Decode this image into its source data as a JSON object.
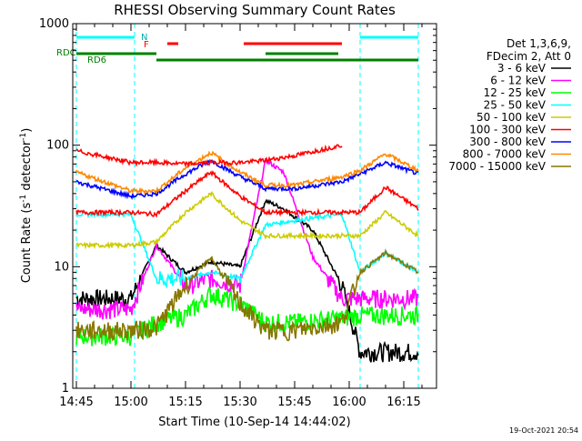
{
  "chart_data": {
    "type": "line",
    "title": "RHESSI Observing Summary Count Rates",
    "xlabel": "Start Time (10-Sep-14 14:44:02)",
    "ylabel_main": "Count Rate (s",
    "ylabel_sup1": "-1",
    "ylabel_mid": " detector",
    "ylabel_sup2": "-1",
    "ylabel_end": ")",
    "yscale": "log",
    "ylim": [
      1,
      1000
    ],
    "xlim": [
      "14:44",
      "16:24"
    ],
    "x_ticks": [
      "14:45",
      "15:00",
      "15:15",
      "15:30",
      "15:45",
      "16:00",
      "16:15"
    ],
    "x_tick_minutes": [
      45,
      60,
      75,
      90,
      105,
      120,
      135
    ],
    "y_ticks": [
      "1",
      "10",
      "100",
      "1000"
    ],
    "y_tick_values": [
      1,
      10,
      100,
      1000
    ],
    "x_start_minute": 44,
    "x_end_minute": 144,
    "timestamp": "19-Oct-2021 20:54",
    "legend": {
      "header1": "Det 1,3,6,9,",
      "header2": "FDecim 2, Att 0",
      "placement": "right"
    },
    "flags": {
      "N_label": "N",
      "F_label": "F",
      "RDC_label": "RDC",
      "RD6_label": "RD6",
      "N": [
        [
          "14:45",
          "15:01"
        ],
        [
          "16:03",
          "16:19"
        ]
      ],
      "F": [
        [
          "15:10",
          "15:13"
        ],
        [
          "15:31",
          "15:58"
        ]
      ],
      "RDC": [
        [
          "14:45",
          "15:07"
        ],
        [
          "15:37",
          "15:57"
        ]
      ],
      "RD6": [
        [
          "15:07",
          "16:19"
        ]
      ]
    },
    "night_boundaries": [
      "14:45",
      "15:01",
      "16:03",
      "16:19"
    ],
    "series": [
      {
        "name": "3 - 6 keV",
        "color": "#000000",
        "x": [
          "14:45",
          "15:00",
          "15:07",
          "15:15",
          "15:22",
          "15:30",
          "15:37",
          "15:42",
          "15:50",
          "15:58",
          "16:03",
          "16:10",
          "16:19"
        ],
        "values": [
          5.5,
          5.5,
          15,
          9,
          11,
          10,
          35,
          30,
          20,
          7,
          2,
          2,
          2
        ]
      },
      {
        "name": "6 - 12 keV",
        "color": "#ff00ff",
        "x": [
          "14:45",
          "15:00",
          "15:07",
          "15:15",
          "15:22",
          "15:30",
          "15:37",
          "15:42",
          "15:50",
          "15:58",
          "16:03",
          "16:10",
          "16:19"
        ],
        "values": [
          4.5,
          4.5,
          15,
          7,
          8,
          7,
          75,
          60,
          12,
          5.5,
          5.5,
          5.5,
          5.5
        ]
      },
      {
        "name": "12 - 25 keV",
        "color": "#00ff00",
        "x": [
          "14:45",
          "15:00",
          "15:07",
          "15:15",
          "15:22",
          "15:30",
          "15:37",
          "15:45",
          "15:58",
          "16:03",
          "16:10",
          "16:19"
        ],
        "values": [
          2.7,
          2.7,
          3.5,
          4,
          6,
          5,
          3.5,
          3.5,
          3.8,
          4,
          4,
          4
        ]
      },
      {
        "name": "25 - 50 keV",
        "color": "#00ffff",
        "x": [
          "14:45",
          "15:00",
          "15:07",
          "15:15",
          "15:22",
          "15:30",
          "15:37",
          "15:45",
          "15:58",
          "16:03",
          "16:10",
          "16:19"
        ],
        "values": [
          27,
          27,
          8,
          8,
          9,
          8,
          22,
          24,
          27,
          9,
          13,
          9
        ]
      },
      {
        "name": "50 - 100 keV",
        "color": "#cccc00",
        "x": [
          "14:45",
          "15:00",
          "15:07",
          "15:15",
          "15:22",
          "15:30",
          "15:37",
          "15:45",
          "15:58",
          "16:03",
          "16:10",
          "16:19"
        ],
        "values": [
          15,
          15,
          16,
          28,
          40,
          24,
          18,
          18,
          18,
          18,
          28,
          18
        ]
      },
      {
        "name": "100 - 300 keV",
        "color": "#ff0000",
        "x": [
          "14:45",
          "15:00",
          "15:07",
          "15:15",
          "15:22",
          "15:30",
          "15:37",
          "15:45",
          "15:58",
          "16:03",
          "16:10",
          "16:19"
        ],
        "values": [
          28,
          28,
          27,
          42,
          60,
          38,
          28,
          28,
          28,
          28,
          45,
          30
        ]
      },
      {
        "name": "300 - 800 keV",
        "color": "#0000ff",
        "x": [
          "14:45",
          "15:00",
          "15:07",
          "15:15",
          "15:22",
          "15:30",
          "15:37",
          "15:45",
          "15:58",
          "16:03",
          "16:10",
          "16:19"
        ],
        "values": [
          50,
          38,
          40,
          58,
          75,
          55,
          44,
          44,
          50,
          58,
          72,
          58
        ]
      },
      {
        "name": "800 - 7000 keV",
        "color": "#ff8800",
        "x": [
          "14:45",
          "15:00",
          "15:07",
          "15:15",
          "15:22",
          "15:30",
          "15:37",
          "15:45",
          "15:58",
          "16:03",
          "16:10",
          "16:19"
        ],
        "values": [
          60,
          42,
          42,
          65,
          87,
          60,
          47,
          47,
          55,
          62,
          85,
          62
        ]
      },
      {
        "name": "7000 - 15000 keV",
        "color": "#887700",
        "x": [
          "14:45",
          "15:00",
          "15:07",
          "15:15",
          "15:22",
          "15:30",
          "15:37",
          "15:45",
          "15:58",
          "16:03",
          "16:10",
          "16:19"
        ],
        "values": [
          3,
          3,
          3.2,
          7,
          12,
          5,
          3,
          3,
          3.5,
          9,
          13,
          9
        ]
      },
      {
        "name": "",
        "color": "#ff0000",
        "x": [
          "14:45",
          "15:00",
          "15:07",
          "15:15",
          "15:22",
          "15:30",
          "15:37",
          "15:45",
          "15:58"
        ],
        "values": [
          90,
          72,
          72,
          70,
          72,
          72,
          75,
          82,
          100
        ]
      }
    ]
  }
}
